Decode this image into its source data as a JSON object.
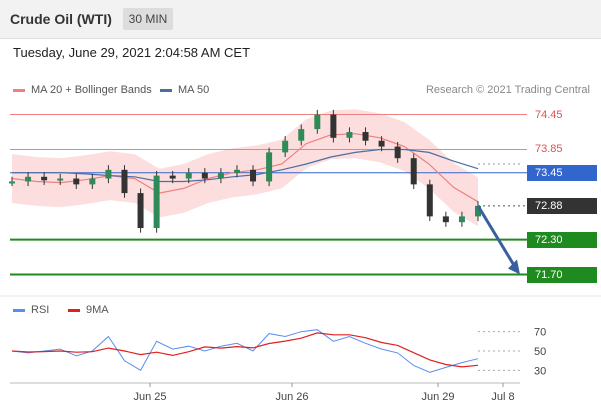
{
  "header": {
    "title": "Crude Oil (WTI)",
    "timeframe": "30 MIN"
  },
  "datetime": "Tuesday, June 29, 2021 2:04:58 AM CET",
  "legend": {
    "ma20": {
      "label": "MA 20 + Bollinger Bands",
      "color": "#f08080"
    },
    "ma50": {
      "label": "MA 50",
      "color": "#4a6fa5"
    }
  },
  "credit": "Research © 2021 Trading Central",
  "price_levels": [
    {
      "label": "74.45",
      "value": 74.45,
      "kind": "line-red"
    },
    {
      "label": "73.85",
      "value": 73.85,
      "kind": "line-red"
    },
    {
      "label": "73.45",
      "value": 73.45,
      "kind": "tag-blue",
      "color": "#3366cc"
    },
    {
      "label": "72.88",
      "value": 72.88,
      "kind": "tag-black",
      "color": "#333333"
    },
    {
      "label": "72.30",
      "value": 72.3,
      "kind": "tag-green",
      "color": "#1f8a1f"
    },
    {
      "label": "71.70",
      "value": 71.7,
      "kind": "tag-green",
      "color": "#1f8a1f"
    }
  ],
  "rsi_legend": {
    "rsi": {
      "label": "RSI",
      "color": "#5b8def"
    },
    "ma9": {
      "label": "9MA",
      "color": "#e02020"
    }
  },
  "rsi_levels": [
    {
      "label": "70",
      "value": 70
    },
    {
      "label": "50",
      "value": 50
    },
    {
      "label": "30",
      "value": 30
    }
  ],
  "x_labels": [
    "Jun 25",
    "Jun 26",
    "Jun 29",
    "Jul 8"
  ],
  "chart_data": {
    "type": "line",
    "title": "Crude Oil (WTI)",
    "series": [
      {
        "name": "MA 20 + Bollinger Bands",
        "values": [
          73.35,
          73.3,
          73.28,
          73.33,
          73.4,
          73.35,
          73.1,
          73.18,
          73.35,
          73.45,
          73.5,
          73.6,
          73.95,
          74.1,
          74.12,
          74.05,
          73.9,
          73.6,
          73.2,
          72.95
        ]
      },
      {
        "name": "MA 50",
        "values": [
          73.45,
          73.45,
          73.45,
          73.43,
          73.4,
          73.38,
          73.3,
          73.3,
          73.33,
          73.38,
          73.42,
          73.5,
          73.6,
          73.72,
          73.8,
          73.85,
          73.85,
          73.8,
          73.65,
          73.52
        ]
      }
    ],
    "price": [
      73.3,
      73.38,
      73.32,
      73.35,
      73.25,
      73.35,
      73.5,
      73.1,
      72.5,
      73.4,
      73.35,
      73.45,
      73.35,
      73.45,
      73.5,
      73.3,
      73.8,
      74.0,
      74.2,
      74.45,
      74.05,
      74.15,
      74.0,
      73.9,
      73.7,
      73.25,
      72.7,
      72.6,
      72.7,
      72.88
    ],
    "rsi": [
      50,
      48,
      50,
      52,
      45,
      50,
      65,
      40,
      30,
      60,
      52,
      55,
      50,
      55,
      58,
      50,
      68,
      65,
      70,
      72,
      60,
      65,
      58,
      52,
      48,
      35,
      28,
      33,
      38,
      42
    ],
    "ylim": [
      71.4,
      74.7
    ],
    "rsi_ylim": [
      20,
      80
    ]
  }
}
